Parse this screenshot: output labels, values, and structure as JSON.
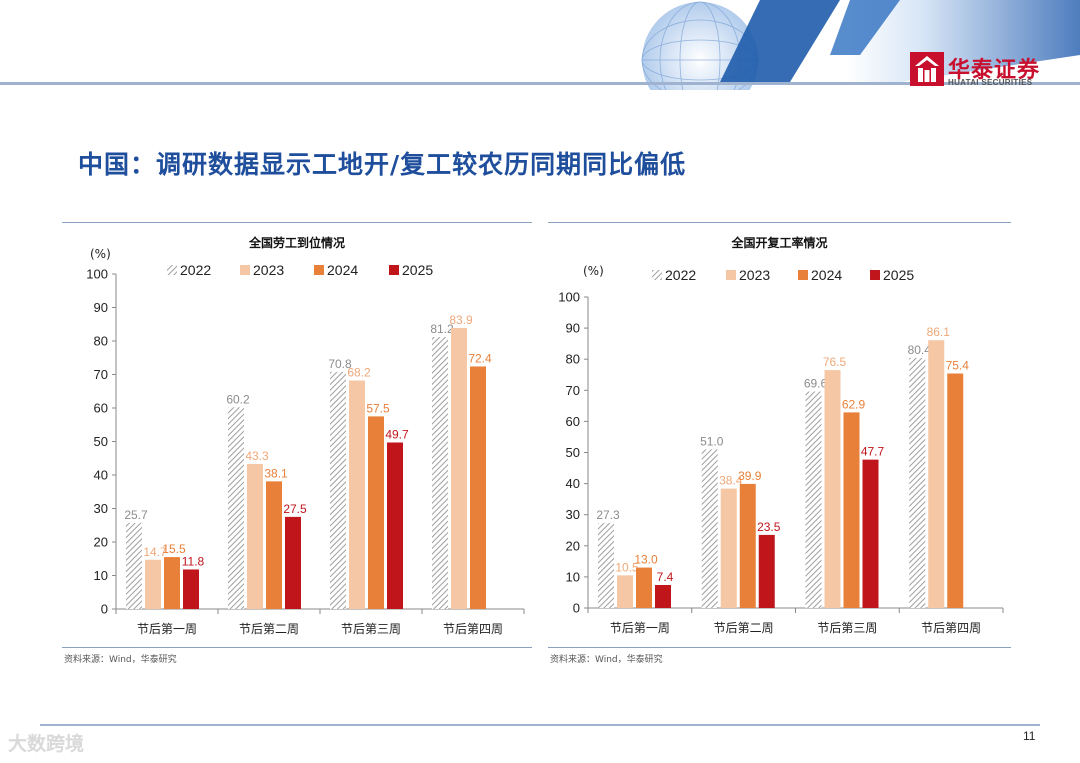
{
  "header": {
    "logo_cn": "华泰证券",
    "logo_en": "HUATAI SECURITIES"
  },
  "page_title": "中国：调研数据显示工地开/复工较农历同期同比偏低",
  "colors": {
    "series_2022": "#9e9e9e",
    "series_2023": "#f6c7a4",
    "series_2024": "#e8803a",
    "series_2025": "#c0151b",
    "label_2022": "#8c8c8c",
    "label_2023": "#f0a878",
    "label_2024": "#e8803a",
    "label_2025": "#c0151b",
    "title_blue": "#1e4e9c",
    "brand_red": "#c8102e"
  },
  "chart_data": [
    {
      "type": "bar",
      "title": "全国劳工到位情况",
      "unit": "(%)",
      "categories": [
        "节后第一周",
        "节后第二周",
        "节后第三周",
        "节后第四周"
      ],
      "series": [
        {
          "name": "2022",
          "values": [
            25.7,
            60.2,
            70.8,
            81.2
          ],
          "pattern": "hatched"
        },
        {
          "name": "2023",
          "values": [
            14.7,
            43.3,
            68.2,
            83.9
          ]
        },
        {
          "name": "2024",
          "values": [
            15.5,
            38.1,
            57.5,
            72.4
          ]
        },
        {
          "name": "2025",
          "values": [
            11.8,
            27.5,
            49.7,
            null
          ]
        }
      ],
      "ylim": [
        0,
        100
      ],
      "yticks": [
        0,
        10,
        20,
        30,
        40,
        50,
        60,
        70,
        80,
        90,
        100
      ],
      "legend": "top",
      "grid": false,
      "source": "资料来源：Wind，华泰研究"
    },
    {
      "type": "bar",
      "title": "全国开复工率情况",
      "unit": "(%)",
      "categories": [
        "节后第一周",
        "节后第二周",
        "节后第三周",
        "节后第四周"
      ],
      "series": [
        {
          "name": "2022",
          "values": [
            27.3,
            51.0,
            69.6,
            80.4
          ],
          "pattern": "hatched"
        },
        {
          "name": "2023",
          "values": [
            10.5,
            38.4,
            76.5,
            86.1
          ]
        },
        {
          "name": "2024",
          "values": [
            13.0,
            39.9,
            62.9,
            75.4
          ]
        },
        {
          "name": "2025",
          "values": [
            7.4,
            23.5,
            47.7,
            null
          ]
        }
      ],
      "ylim": [
        0,
        100
      ],
      "yticks": [
        0,
        10,
        20,
        30,
        40,
        50,
        60,
        70,
        80,
        90,
        100
      ],
      "legend": "top",
      "grid": false,
      "source": "资料来源：Wind，华泰研究"
    }
  ],
  "footer": {
    "page_number": "11",
    "watermark": "大数跨境"
  }
}
